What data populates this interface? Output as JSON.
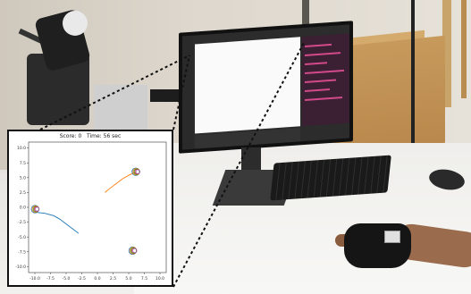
{
  "inset": {
    "score_label": "Score:",
    "score_value": "0",
    "time_label": "Time:",
    "time_value": "56 sec"
  },
  "chart_data": {
    "type": "scatter",
    "title": "Score: 0   Time: 56 sec",
    "xlabel": "",
    "ylabel": "",
    "xlim": [
      -11,
      11
    ],
    "ylim": [
      -11,
      11
    ],
    "xticks": [
      -10.0,
      -7.5,
      -5.0,
      -2.5,
      0.0,
      2.5,
      5.0,
      7.5,
      10.0
    ],
    "xtick_labels": [
      "-10.0",
      "-7.5",
      "-5.0",
      "-2.5",
      "0.0",
      "2.5",
      "5.0",
      "7.5",
      "10.0"
    ],
    "yticks": [
      -10.0,
      -7.5,
      -5.0,
      -2.5,
      0.0,
      2.5,
      5.0,
      7.5,
      10.0
    ],
    "ytick_labels": [
      "-10.0",
      "-7.5",
      "-5.0",
      "-2.5",
      "0.0",
      "2.5",
      "5.0",
      "7.5",
      "10.0"
    ],
    "grid": false,
    "targets": [
      {
        "x": 6.3,
        "y": 6.0
      },
      {
        "x": -9.8,
        "y": -0.3
      },
      {
        "x": 5.8,
        "y": -7.3
      }
    ],
    "series": [
      {
        "color": "#1f77b4",
        "points": [
          [
            -10.2,
            -0.8
          ],
          [
            -8.5,
            -1.0
          ],
          [
            -7.0,
            -1.4
          ],
          [
            -6.0,
            -2.0
          ],
          [
            -5.0,
            -2.8
          ],
          [
            -4.0,
            -3.6
          ],
          [
            -3.0,
            -4.4
          ]
        ]
      },
      {
        "color": "#ff7f0e",
        "points": [
          [
            1.2,
            2.5
          ],
          [
            2.0,
            3.2
          ],
          [
            3.0,
            4.0
          ],
          [
            4.0,
            4.8
          ],
          [
            5.0,
            5.4
          ],
          [
            6.0,
            5.9
          ]
        ]
      }
    ]
  }
}
